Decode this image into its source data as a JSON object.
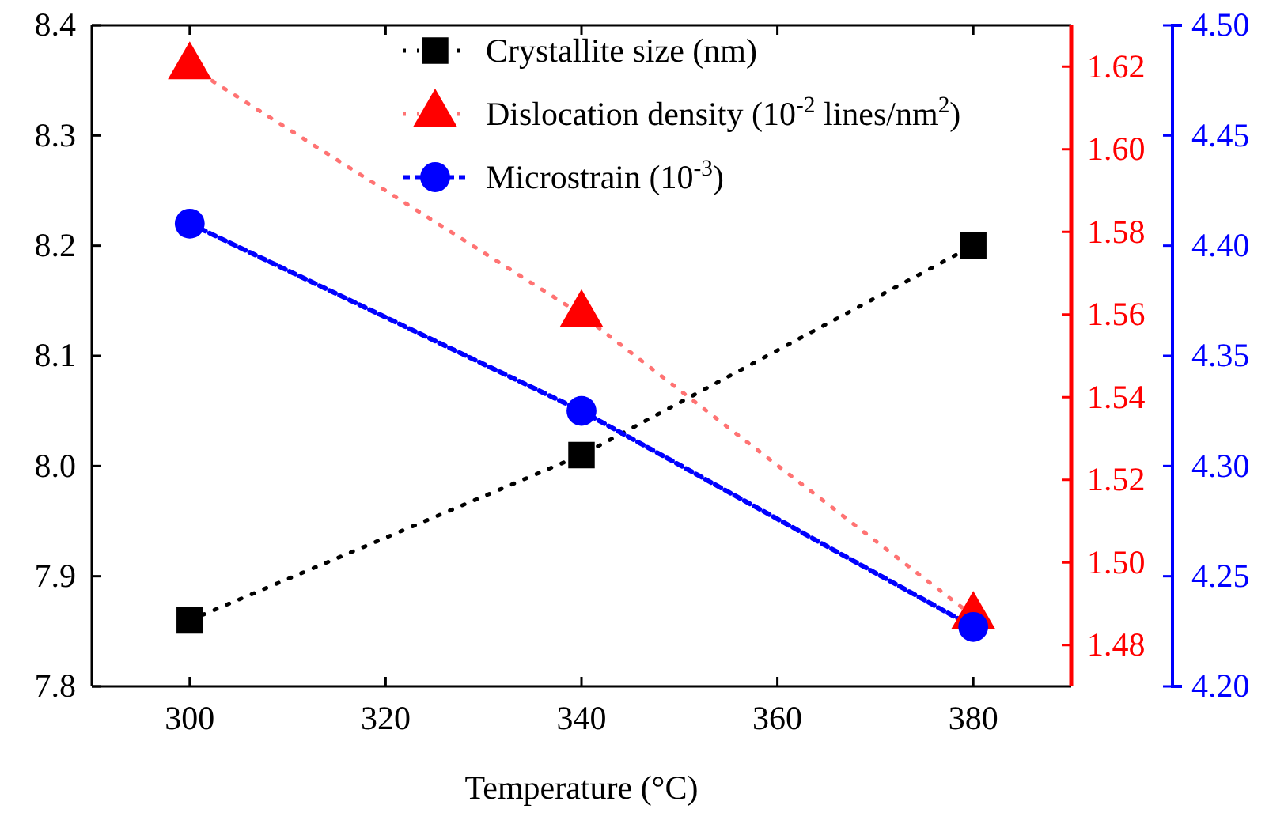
{
  "chart_data": {
    "type": "line",
    "xlabel": "Temperature (°C)",
    "x": [
      300,
      340,
      380
    ],
    "xlim": [
      290,
      390
    ],
    "xticks": [
      300,
      320,
      340,
      360,
      380
    ],
    "ylim": [
      7.8,
      8.4
    ],
    "yticks": [
      7.8,
      7.9,
      {
        "value": 8.0,
        "label": "8.0"
      },
      8.1,
      8.2,
      8.3,
      8.4
    ],
    "y2lim": [
      1.47,
      1.63
    ],
    "y2ticks": [
      1.48,
      {
        "value": 1.5,
        "label": "1.50"
      },
      1.52,
      1.54,
      1.56,
      1.58,
      {
        "value": 1.6,
        "label": "1.60"
      },
      1.62
    ],
    "y3lim": [
      4.2,
      4.5
    ],
    "y3ticks": [
      {
        "value": 4.2,
        "label": "4.20"
      },
      4.25,
      {
        "value": 4.3,
        "label": "4.30"
      },
      4.35,
      {
        "value": 4.4,
        "label": "4.40"
      },
      4.45,
      {
        "value": 4.5,
        "label": "4.50"
      }
    ],
    "legend": "top",
    "grid": false,
    "series": [
      {
        "name": "Crystallite size (nm)",
        "color": "#000000",
        "values": [
          7.86,
          8.01,
          8.2
        ],
        "marker": "square",
        "line_style": "dotted"
      },
      {
        "name": "Dislocation density (10$^{-2}$ lines/nm$^{2}$)",
        "color": "#ff0000",
        "values": [
          1.62,
          1.56,
          1.487
        ],
        "axis": "y2",
        "marker": "triangle",
        "line_style": "dotted"
      },
      {
        "name": "Microstrain (10$^{-3}$)",
        "color": "#0000ff",
        "values": [
          4.41,
          4.325,
          4.227
        ],
        "axis": "y3",
        "marker": "circle",
        "line_style": "dashed"
      }
    ]
  }
}
